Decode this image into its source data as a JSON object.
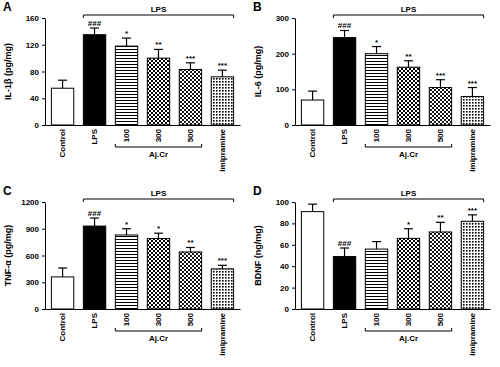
{
  "chart_data": [
    {
      "type": "bar",
      "title": "A",
      "y_label": "IL-1β (pg/mg)",
      "categories": [
        "Control",
        "LPS",
        "100",
        "300",
        "500",
        "Imipramine"
      ],
      "values": [
        55,
        135,
        118,
        100,
        83,
        72
      ],
      "errors": [
        12,
        10,
        12,
        13,
        10,
        10
      ],
      "significance": [
        null,
        "###",
        "*",
        "**",
        "***",
        "***"
      ],
      "brackets": [
        {
          "label": "LPS",
          "from": "LPS",
          "to": "Imipramine",
          "side": "top"
        },
        {
          "label": "Aj.Cr",
          "from": "100",
          "to": "500",
          "side": "bottom"
        }
      ],
      "ylim": [
        0,
        160
      ],
      "yticks": [
        0,
        40,
        80,
        120,
        160
      ]
    },
    {
      "type": "bar",
      "title": "B",
      "y_label": "IL-6 (pg/mg)",
      "categories": [
        "Control",
        "LPS",
        "100",
        "300",
        "500",
        "Imipramine"
      ],
      "values": [
        70,
        245,
        200,
        162,
        105,
        80
      ],
      "errors": [
        25,
        20,
        20,
        18,
        22,
        25
      ],
      "significance": [
        null,
        "###",
        "*",
        "**",
        "***",
        "***"
      ],
      "brackets": [
        {
          "label": "LPS",
          "from": "LPS",
          "to": "Imipramine",
          "side": "top"
        },
        {
          "label": "Aj.Cr",
          "from": "100",
          "to": "500",
          "side": "bottom"
        }
      ],
      "ylim": [
        0,
        300
      ],
      "yticks": [
        0,
        100,
        200,
        300
      ]
    },
    {
      "type": "bar",
      "title": "C",
      "y_label": "TNF-α (pg/mg)",
      "categories": [
        "Control",
        "LPS",
        "100",
        "300",
        "500",
        "Imipramine"
      ],
      "values": [
        360,
        930,
        830,
        790,
        640,
        450
      ],
      "errors": [
        100,
        90,
        70,
        60,
        50,
        40
      ],
      "significance": [
        null,
        "###",
        "*",
        "*",
        "**",
        "***"
      ],
      "brackets": [
        {
          "label": "LPS",
          "from": "LPS",
          "to": "Imipramine",
          "side": "top"
        },
        {
          "label": "Aj.Cr",
          "from": "100",
          "to": "500",
          "side": "bottom"
        }
      ],
      "ylim": [
        0,
        1200
      ],
      "yticks": [
        0,
        300,
        600,
        900,
        1200
      ]
    },
    {
      "type": "bar",
      "title": "D",
      "y_label": "BDNF (ng/mg)",
      "categories": [
        "Control",
        "LPS",
        "100",
        "300",
        "500",
        "Imipramine"
      ],
      "values": [
        91,
        49,
        56,
        66,
        72,
        82
      ],
      "errors": [
        7,
        8,
        7,
        9,
        9,
        6
      ],
      "significance": [
        null,
        "###",
        null,
        "*",
        "**",
        "***"
      ],
      "brackets": [
        {
          "label": "LPS",
          "from": "LPS",
          "to": "Imipramine",
          "side": "top"
        },
        {
          "label": "Aj.Cr",
          "from": "100",
          "to": "500",
          "side": "bottom"
        }
      ],
      "ylim": [
        0,
        100
      ],
      "yticks": [
        0,
        20,
        40,
        60,
        80,
        100
      ]
    }
  ]
}
